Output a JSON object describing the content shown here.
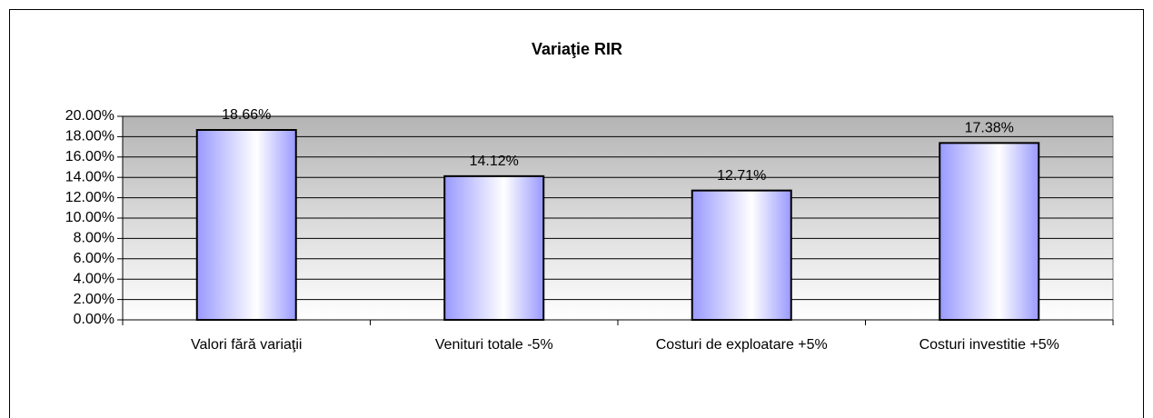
{
  "chart_data": {
    "type": "bar",
    "title": "Variaţie RIR",
    "categories": [
      "Valori fără variaţii",
      "Venituri totale -5%",
      "Costuri de exploatare +5%",
      "Costuri investitie +5%"
    ],
    "values": [
      18.66,
      14.12,
      12.71,
      17.38
    ],
    "value_labels": [
      "18.66%",
      "14.12%",
      "12.71%",
      "17.38%"
    ],
    "color": "#9999ff",
    "ylim": [
      0,
      20
    ],
    "yticks": [
      {
        "value": 0,
        "label": "0.00%"
      },
      {
        "value": 2,
        "label": "2.00%"
      },
      {
        "value": 4,
        "label": "4.00%"
      },
      {
        "value": 6,
        "label": "6.00%"
      },
      {
        "value": 8,
        "label": "8.00%"
      },
      {
        "value": 10,
        "label": "10.00%"
      },
      {
        "value": 12,
        "label": "12.00%"
      },
      {
        "value": 14,
        "label": "14.00%"
      },
      {
        "value": 16,
        "label": "16.00%"
      },
      {
        "value": 18,
        "label": "18.00%"
      },
      {
        "value": 20,
        "label": "20.00%"
      }
    ],
    "grid": true
  }
}
